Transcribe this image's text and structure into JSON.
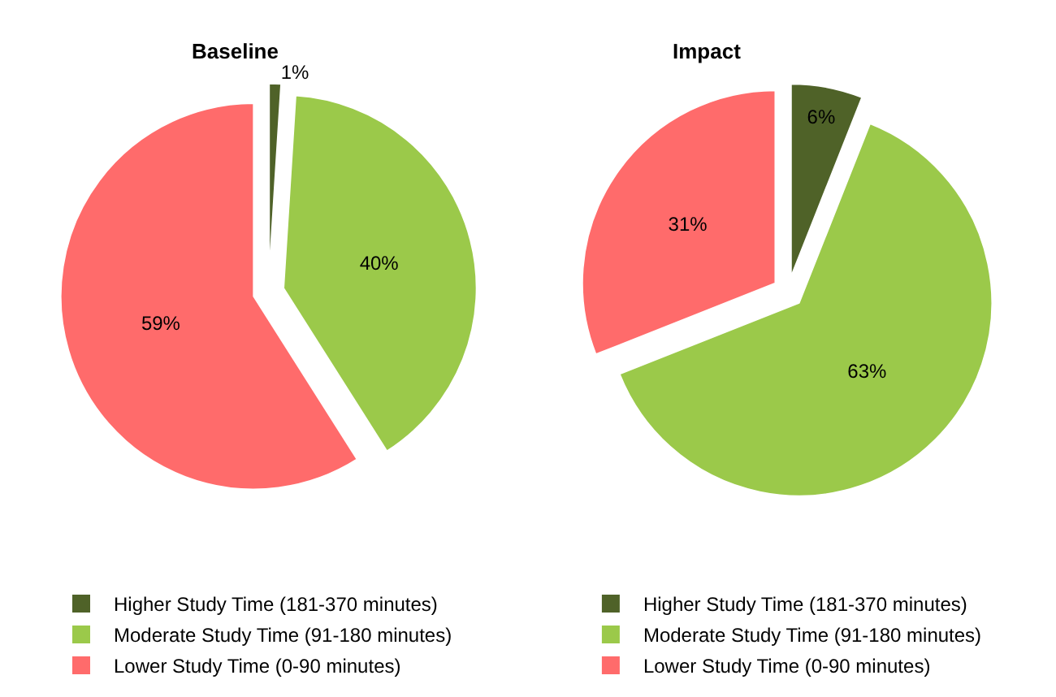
{
  "chart_data": [
    {
      "type": "pie",
      "title": "Baseline",
      "categories": [
        "Higher Study Time (181-370 minutes)",
        "Moderate Study Time (91-180 minutes)",
        "Lower Study Time (0-90 minutes)"
      ],
      "values": [
        1,
        40,
        59
      ],
      "value_labels": [
        "1%",
        "40%",
        "59%"
      ],
      "colors": [
        "#4f6228",
        "#9bc94a",
        "#ff6b6b"
      ],
      "legend": "bottom"
    },
    {
      "type": "pie",
      "title": "Impact",
      "categories": [
        "Higher Study Time (181-370 minutes)",
        "Moderate Study Time (91-180 minutes)",
        "Lower Study Time (0-90 minutes)"
      ],
      "values": [
        6,
        63,
        31
      ],
      "value_labels": [
        "6%",
        "63%",
        "31%"
      ],
      "colors": [
        "#4f6228",
        "#9bc94a",
        "#ff6b6b"
      ],
      "legend": "bottom"
    }
  ]
}
